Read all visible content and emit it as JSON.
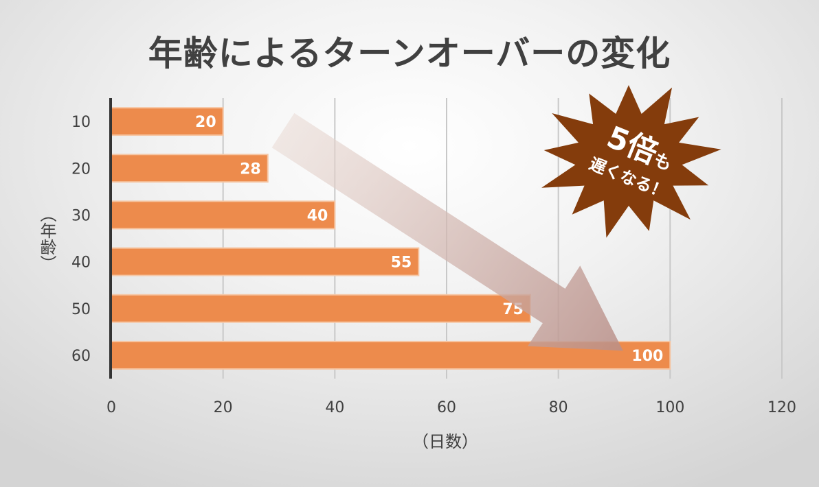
{
  "chart_data": {
    "type": "bar",
    "orientation": "horizontal",
    "title": "年齢によるターンオーバーの変化",
    "categories": [
      "10",
      "20",
      "30",
      "40",
      "50",
      "60"
    ],
    "values": [
      20,
      28,
      40,
      55,
      75,
      100
    ],
    "xlabel": "（日数）",
    "ylabel": "（年齢）",
    "xlim": [
      0,
      120
    ],
    "xticks": [
      0,
      20,
      40,
      60,
      80,
      100,
      120
    ],
    "grid": true,
    "bar_color": "#ed8b4c",
    "annotation": {
      "line1": "5倍",
      "line1b": "も",
      "line2": "遅くなる！",
      "color": "#843c0c"
    }
  }
}
